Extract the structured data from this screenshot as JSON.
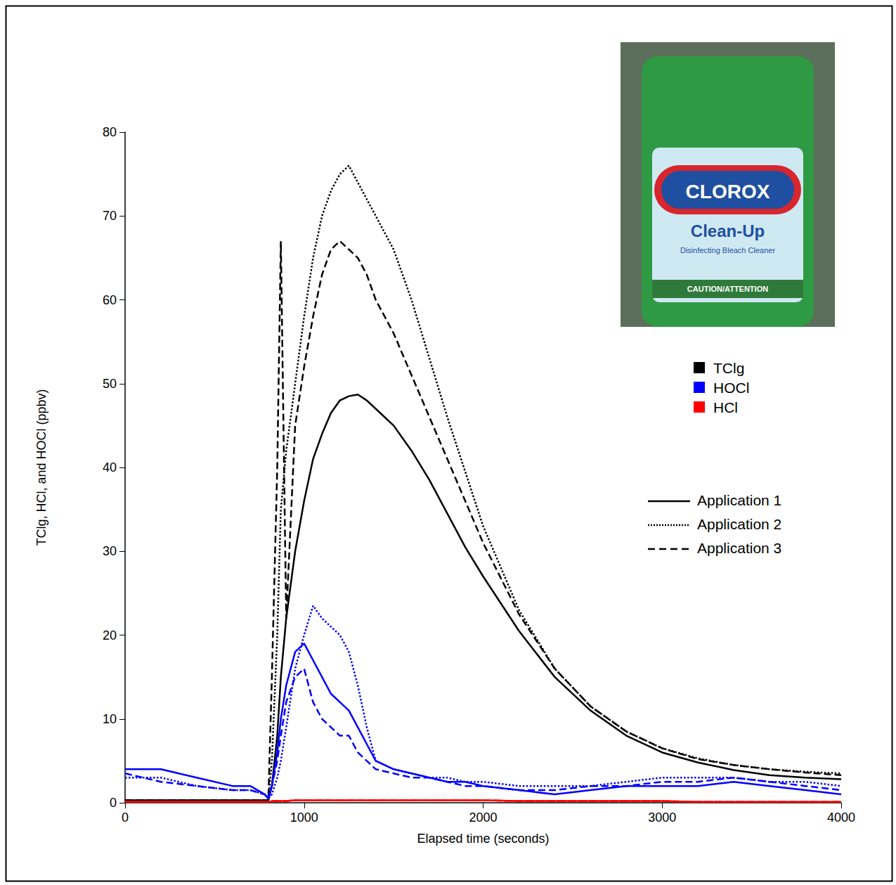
{
  "chart_data": {
    "type": "line",
    "x_label": "Elapsed time (seconds)",
    "y_label": "TClg, HCl, and HOCl (ppbv)",
    "x": [
      0,
      200,
      400,
      600,
      700,
      780,
      800,
      820,
      850,
      870,
      900,
      950,
      1000,
      1050,
      1100,
      1150,
      1200,
      1250,
      1300,
      1350,
      1400,
      1500,
      1600,
      1700,
      1800,
      1900,
      2000,
      2200,
      2400,
      2600,
      2800,
      3000,
      3200,
      3400,
      3600,
      3800,
      4000
    ],
    "xlim": [
      0,
      4000
    ],
    "xticks": [
      0,
      1000,
      2000,
      3000,
      4000
    ],
    "ylim": [
      0,
      80
    ],
    "yticks": [
      0,
      10,
      20,
      30,
      40,
      50,
      60,
      70,
      80
    ],
    "grid": false,
    "legend": "right",
    "annotations": [
      "CLOROX",
      "Clean-Up",
      "Disinfecting Bleach Cleaner",
      "CAUTION/ATTENTION"
    ],
    "series": [
      {
        "name": "TClg",
        "application": "Application 1",
        "color": "#000000",
        "line_style": "solid",
        "values": [
          0.3,
          0.3,
          0.3,
          0.3,
          0.3,
          0.3,
          0.3,
          2,
          8,
          15,
          22,
          30,
          36,
          41,
          44,
          46.5,
          48,
          48.5,
          48.7,
          48,
          47,
          45,
          42,
          38.5,
          34.5,
          30.5,
          27,
          20.5,
          15,
          11,
          8,
          6,
          4.8,
          3.9,
          3.3,
          3,
          2.8
        ]
      },
      {
        "name": "TClg",
        "application": "Application 2",
        "color": "#000000",
        "line_style": "dotted",
        "values": [
          0.3,
          0.3,
          0.3,
          0.3,
          0.3,
          0.3,
          0.3,
          5,
          20,
          35,
          42,
          50,
          58,
          65,
          70,
          73,
          75,
          76,
          74,
          72,
          70,
          66,
          60,
          53,
          46,
          39.5,
          33,
          23,
          16,
          11.5,
          8.5,
          6.5,
          5.3,
          4.5,
          4,
          3.7,
          3.5
        ]
      },
      {
        "name": "TClg",
        "application": "Application 3",
        "color": "#000000",
        "line_style": "dashed",
        "values": [
          0.3,
          0.3,
          0.3,
          0.3,
          0.3,
          0.3,
          0.3,
          15,
          40,
          67,
          22,
          45,
          52,
          58,
          63,
          66,
          67,
          66,
          65,
          63,
          60,
          56,
          51,
          46,
          41,
          36,
          31,
          22.5,
          16,
          11.5,
          8.5,
          6.5,
          5.2,
          4.5,
          4,
          3.6,
          3.3
        ]
      },
      {
        "name": "HOCl",
        "application": "Application 1",
        "color": "#0000ff",
        "line_style": "solid",
        "values": [
          4,
          4,
          3,
          2,
          2,
          1,
          0.5,
          2,
          6,
          10,
          14,
          18,
          19,
          17,
          15,
          13,
          12,
          11,
          9,
          7,
          5,
          4,
          3.5,
          3,
          2.5,
          2.5,
          2,
          1.5,
          1,
          1.5,
          2,
          2,
          2,
          2.5,
          2,
          1.5,
          1
        ]
      },
      {
        "name": "HOCl",
        "application": "Application 2",
        "color": "#0000ff",
        "line_style": "dotted",
        "values": [
          3,
          3,
          2,
          1.5,
          1.5,
          1,
          0.5,
          1,
          3,
          5,
          9,
          16,
          20,
          23.5,
          22,
          21,
          20,
          18,
          14,
          9,
          5,
          4,
          3.5,
          3,
          3,
          2.5,
          2.5,
          2,
          2,
          2,
          2.5,
          3,
          3,
          3,
          2.5,
          2.5,
          2
        ]
      },
      {
        "name": "HOCl",
        "application": "Application 3",
        "color": "#0000ff",
        "line_style": "dashed",
        "values": [
          3.5,
          2.5,
          2,
          1.5,
          1.5,
          1,
          0.5,
          2,
          5,
          8,
          12,
          15,
          16,
          12,
          10,
          9,
          8,
          8,
          6,
          5,
          4,
          3.5,
          3,
          3,
          2.5,
          2,
          2,
          1.5,
          1.5,
          2,
          2,
          2.5,
          2.5,
          3,
          2.5,
          2,
          1.5
        ]
      },
      {
        "name": "HCl",
        "application": "Application 1",
        "color": "#ff0000",
        "line_style": "solid",
        "values": [
          0.1,
          0.1,
          0.1,
          0.1,
          0.1,
          0.1,
          0.1,
          0.2,
          0.2,
          0.2,
          0.2,
          0.3,
          0.3,
          0.3,
          0.3,
          0.3,
          0.3,
          0.3,
          0.3,
          0.3,
          0.3,
          0.3,
          0.3,
          0.3,
          0.3,
          0.3,
          0.3,
          0.2,
          0.2,
          0.2,
          0.2,
          0.2,
          0.1,
          0.1,
          0.1,
          0.1,
          0.1
        ]
      },
      {
        "name": "HCl",
        "application": "Application 2",
        "color": "#ff0000",
        "line_style": "dotted",
        "values": [
          0.1,
          0.1,
          0.1,
          0.1,
          0.1,
          0.1,
          0.1,
          0.2,
          0.2,
          0.2,
          0.2,
          0.3,
          0.3,
          0.3,
          0.3,
          0.3,
          0.3,
          0.3,
          0.3,
          0.3,
          0.3,
          0.3,
          0.3,
          0.3,
          0.3,
          0.3,
          0.3,
          0.2,
          0.2,
          0.2,
          0.2,
          0.2,
          0.1,
          0.1,
          0.1,
          0.1,
          0.1
        ]
      },
      {
        "name": "HCl",
        "application": "Application 3",
        "color": "#ff0000",
        "line_style": "dashed",
        "values": [
          0.1,
          0.1,
          0.1,
          0.1,
          0.1,
          0.1,
          0.1,
          0.2,
          0.2,
          0.2,
          0.2,
          0.3,
          0.3,
          0.3,
          0.3,
          0.3,
          0.3,
          0.3,
          0.3,
          0.3,
          0.3,
          0.3,
          0.3,
          0.3,
          0.3,
          0.3,
          0.3,
          0.2,
          0.2,
          0.2,
          0.2,
          0.2,
          0.1,
          0.1,
          0.1,
          0.1,
          0.1
        ]
      }
    ]
  }
}
